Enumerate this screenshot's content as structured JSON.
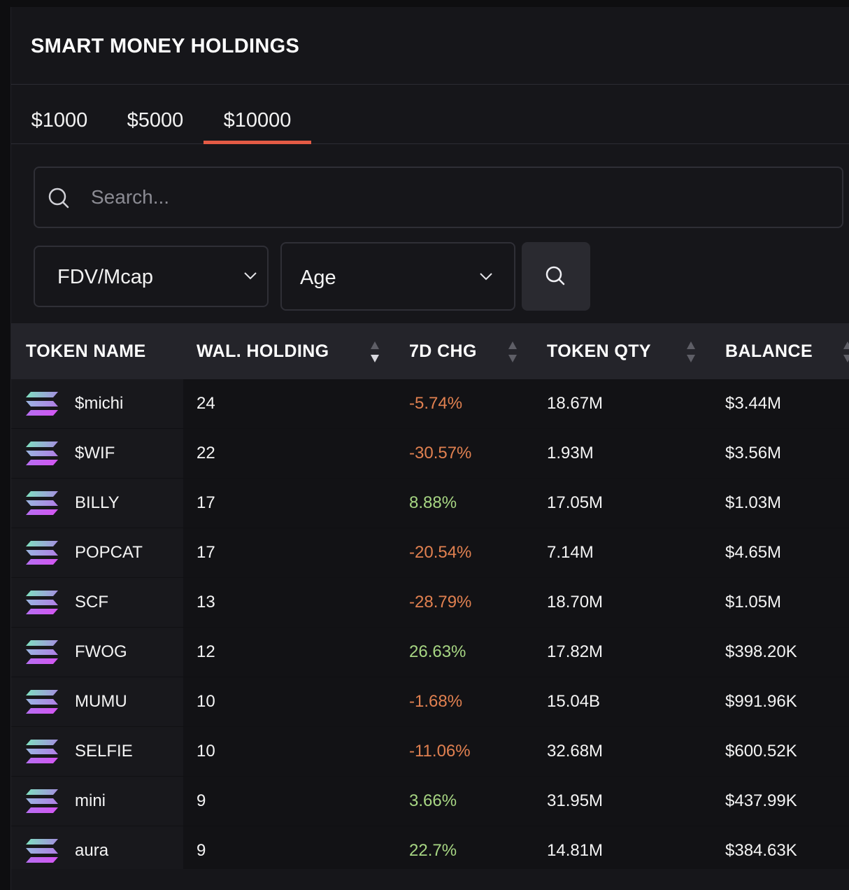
{
  "title": "SMART MONEY HOLDINGS",
  "tabs": [
    {
      "label": "$1000",
      "active": false
    },
    {
      "label": "$5000",
      "active": false
    },
    {
      "label": "$10000",
      "active": true
    }
  ],
  "search": {
    "placeholder": "Search..."
  },
  "filters": {
    "fdv_label": "FDV/Mcap",
    "age_label": "Age"
  },
  "table": {
    "headers": [
      "TOKEN NAME",
      "WAL. HOLDING",
      "7D CHG",
      "TOKEN QTY",
      "BALANCE"
    ],
    "rows": [
      {
        "name": "$michi",
        "wallets": "24",
        "chg": "-5.74%",
        "qty": "18.67M",
        "balance": "$3.44M"
      },
      {
        "name": "$WIF",
        "wallets": "22",
        "chg": "-30.57%",
        "qty": "1.93M",
        "balance": "$3.56M"
      },
      {
        "name": "BILLY",
        "wallets": "17",
        "chg": "8.88%",
        "qty": "17.05M",
        "balance": "$1.03M"
      },
      {
        "name": "POPCAT",
        "wallets": "17",
        "chg": "-20.54%",
        "qty": "7.14M",
        "balance": "$4.65M"
      },
      {
        "name": "SCF",
        "wallets": "13",
        "chg": "-28.79%",
        "qty": "18.70M",
        "balance": "$1.05M"
      },
      {
        "name": "FWOG",
        "wallets": "12",
        "chg": "26.63%",
        "qty": "17.82M",
        "balance": "$398.20K"
      },
      {
        "name": "MUMU",
        "wallets": "10",
        "chg": "-1.68%",
        "qty": "15.04B",
        "balance": "$991.96K"
      },
      {
        "name": "SELFIE",
        "wallets": "10",
        "chg": "-11.06%",
        "qty": "32.68M",
        "balance": "$600.52K"
      },
      {
        "name": "mini",
        "wallets": "9",
        "chg": "3.66%",
        "qty": "31.95M",
        "balance": "$437.99K"
      },
      {
        "name": "aura",
        "wallets": "9",
        "chg": "22.7%",
        "qty": "14.81M",
        "balance": "$384.63K"
      }
    ]
  },
  "colors": {
    "accent": "#e45b45",
    "negative": "#e08050",
    "positive": "#a7d683"
  },
  "icons": {
    "token_logo": "solana-logo-icon",
    "search": "search-icon",
    "chevron": "chevron-down-icon",
    "sort": "sort-icon"
  }
}
